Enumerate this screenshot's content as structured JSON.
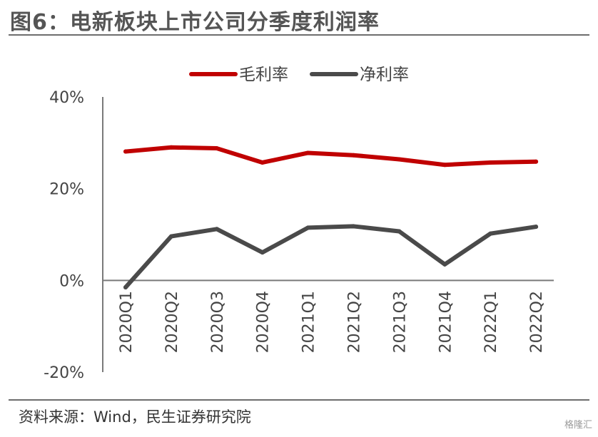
{
  "figure": {
    "title": "图6：电新板块上市公司分季度利润率",
    "source": "资料来源：Wind，民生证券研究院",
    "watermark": "格隆汇"
  },
  "chart_data": {
    "type": "line",
    "title": "",
    "xlabel": "",
    "ylabel": "",
    "categories": [
      "2020Q1",
      "2020Q2",
      "2020Q3",
      "2020Q4",
      "2021Q1",
      "2021Q2",
      "2021Q3",
      "2021Q4",
      "2022Q1",
      "2022Q2"
    ],
    "y_ticks": [
      "40%",
      "20%",
      "0%",
      "-20%"
    ],
    "ylim": [
      -20,
      40
    ],
    "legend_position": "top-center",
    "grid": false,
    "series": [
      {
        "name": "毛利率",
        "color": "#c00000",
        "values": [
          28.1,
          29.0,
          28.8,
          25.7,
          27.8,
          27.3,
          26.4,
          25.2,
          25.7,
          25.9
        ]
      },
      {
        "name": "净利率",
        "color": "#4a4a4a",
        "values": [
          -1.5,
          9.6,
          11.2,
          6.1,
          11.5,
          11.8,
          10.7,
          3.5,
          10.2,
          11.7
        ]
      }
    ]
  }
}
